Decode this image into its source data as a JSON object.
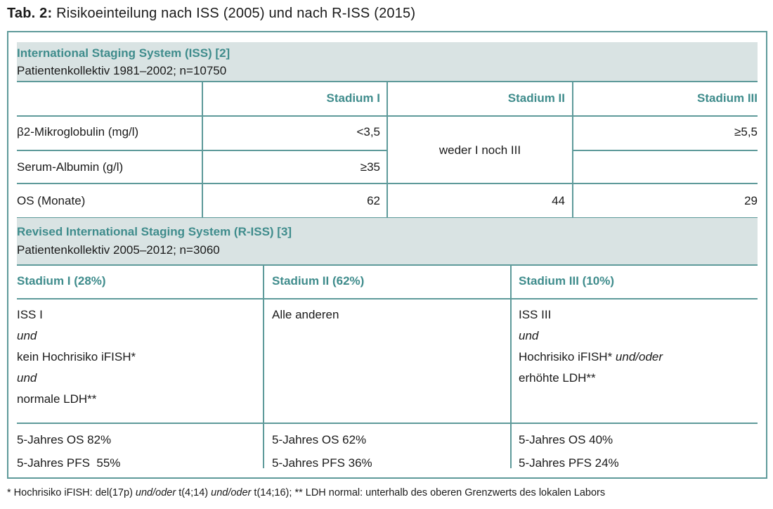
{
  "caption": {
    "label": "Tab. 2:",
    "text": "Risikoeinteilung nach ISS (2005) und nach R-ISS (2015)"
  },
  "iss": {
    "heading": "International Staging System (ISS) [2]",
    "subheading": "Patientenkollektiv 1981–2002; n=10750",
    "columns": [
      "Stadium I",
      "Stadium II",
      "Stadium III"
    ],
    "rows": [
      {
        "label": "β2-Mikroglobulin (mg/l)",
        "stage1": "<3,5",
        "stage3": "≥5,5"
      },
      {
        "label": "Serum-Albumin (g/l)",
        "stage1": "≥35",
        "stage3": ""
      },
      {
        "label": "OS (Monate)",
        "stage1": "62",
        "stage2": "44",
        "stage3": "29"
      }
    ],
    "stage2_merged": "weder I noch III"
  },
  "riss": {
    "heading": "Revised International Staging System (R-ISS) [3]",
    "subheading": "Patientenkollektiv 2005–2012; n=3060",
    "columns": [
      "Stadium I (28%)",
      "Stadium II (62%)",
      "Stadium III (10%)"
    ],
    "stage1_criteria": [
      "ISS I",
      "und",
      "kein Hochrisiko iFISH*",
      "und",
      "normale LDH**"
    ],
    "stage2_criteria": [
      "Alle anderen"
    ],
    "stage3_criteria": {
      "line1": "ISS III",
      "line2": "und",
      "line3_a": "Hochrisiko iFISH* ",
      "line3_b": "und/oder",
      "line4": "erhöhte LDH**"
    },
    "outcomes": [
      {
        "os": "5-Jahres OS 82%",
        "pfs": "5-Jahres PFS  55%"
      },
      {
        "os": "5-Jahres OS 62%",
        "pfs": "5-Jahres PFS 36%"
      },
      {
        "os": "5-Jahres OS 40%",
        "pfs": "5-Jahres PFS 24%"
      }
    ]
  },
  "footnote": {
    "p1": "* Hochrisiko iFISH: del(17p) ",
    "p2": "und/oder",
    "p3": " t(4;14) ",
    "p4": "und/oder",
    "p5": " t(14;16); ** LDH normal: unterhalb des oberen Grenzwerts des lokalen Labors"
  }
}
